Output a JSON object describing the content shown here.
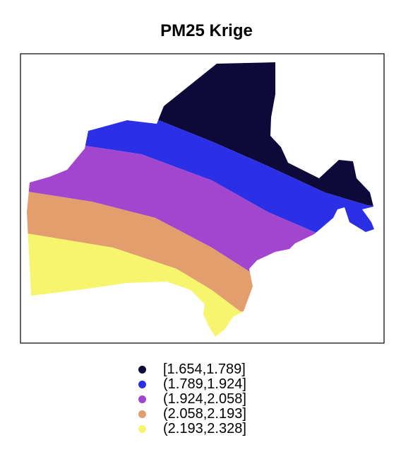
{
  "title": "PM25 Krige",
  "legend": {
    "items": [
      {
        "label": "[1.654,1.789]",
        "color": "#0d0a3a"
      },
      {
        "label": "(1.789,1.924]",
        "color": "#2b2fe6"
      },
      {
        "label": "(1.924,2.058]",
        "color": "#a246cf"
      },
      {
        "label": "(2.058,2.193]",
        "color": "#e39e6d"
      },
      {
        "label": "(2.193,2.328]",
        "color": "#f7f56e"
      }
    ]
  }
}
